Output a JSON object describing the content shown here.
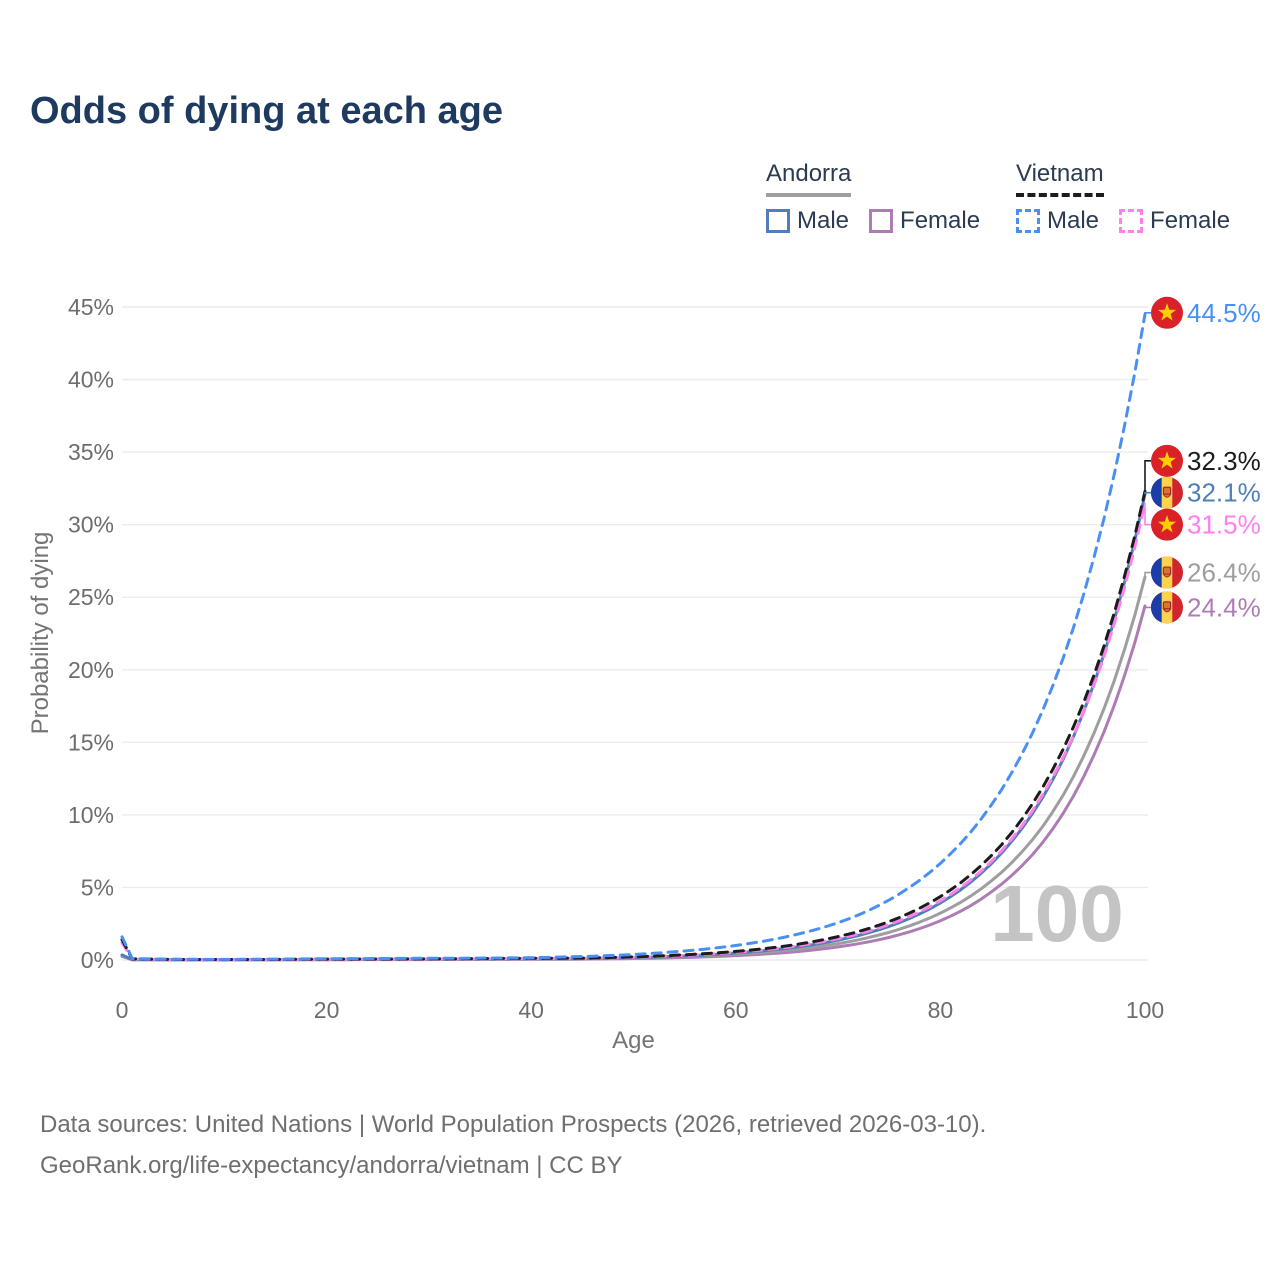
{
  "title": "Odds of dying at each age",
  "legend": {
    "groups": [
      {
        "country": "Andorra",
        "line_style": "solid",
        "underline_color": "#9e9e9e",
        "items": [
          {
            "label": "Male",
            "color": "#4e7fba"
          },
          {
            "label": "Female",
            "color": "#ae7cb4"
          }
        ]
      },
      {
        "country": "Vietnam",
        "line_style": "dashed",
        "underline_color": "#1c1c1c",
        "items": [
          {
            "label": "Male",
            "color": "#4a90f2"
          },
          {
            "label": "Female",
            "color": "#ff80ec"
          }
        ]
      }
    ]
  },
  "chart_data": {
    "type": "line",
    "title": "Odds of dying at each age",
    "xlabel": "Age",
    "ylabel": "Probability of dying",
    "xlim": [
      0,
      100
    ],
    "ylim": [
      0,
      45
    ],
    "x_ticks": [
      0,
      20,
      40,
      60,
      80,
      100
    ],
    "y_ticks": [
      0,
      5,
      10,
      15,
      20,
      25,
      30,
      35,
      40,
      45
    ],
    "y_tick_suffix": "%",
    "grid": "horizontal",
    "legend_position": "top-right",
    "watermark": "100",
    "x": [
      0,
      1,
      5,
      10,
      15,
      20,
      25,
      30,
      35,
      40,
      45,
      50,
      55,
      60,
      65,
      70,
      75,
      80,
      85,
      90,
      95,
      100
    ],
    "series": [
      {
        "name": "Andorra Female",
        "country": "Andorra",
        "sex": "Female",
        "color": "#ae7cb4",
        "dashed": false,
        "flag": "ad",
        "end_label": "24.4%",
        "end_value": 24.4,
        "label_pct": 24.3,
        "values": [
          0.25,
          0.02,
          0.01,
          0.01,
          0.02,
          0.02,
          0.03,
          0.03,
          0.04,
          0.05,
          0.06,
          0.1,
          0.17,
          0.3,
          0.52,
          0.9,
          1.56,
          2.7,
          4.7,
          8.1,
          14.1,
          24.4
        ]
      },
      {
        "name": "Andorra Both sexes",
        "country": "Andorra",
        "sex": "Both",
        "color": "#9e9e9e",
        "dashed": false,
        "flag": "ad",
        "end_label": "26.4%",
        "end_value": 26.4,
        "label_pct": 26.7,
        "values": [
          0.3,
          0.03,
          0.02,
          0.02,
          0.02,
          0.03,
          0.04,
          0.04,
          0.05,
          0.06,
          0.08,
          0.14,
          0.23,
          0.4,
          0.67,
          1.13,
          1.91,
          3.23,
          5.46,
          9.2,
          15.6,
          26.4
        ]
      },
      {
        "name": "Andorra Male",
        "country": "Andorra",
        "sex": "Male",
        "color": "#4e7fba",
        "dashed": false,
        "flag": "ad",
        "end_label": "32.1%",
        "end_value": 32.1,
        "label_pct": 32.2,
        "values": [
          0.35,
          0.03,
          0.02,
          0.02,
          0.03,
          0.05,
          0.06,
          0.06,
          0.07,
          0.08,
          0.1,
          0.17,
          0.28,
          0.48,
          0.81,
          1.37,
          2.32,
          3.93,
          6.65,
          11.2,
          19.0,
          32.1
        ]
      },
      {
        "name": "Vietnam Female",
        "country": "Vietnam",
        "sex": "Female",
        "color": "#ff80ec",
        "dashed": true,
        "flag": "vn",
        "end_label": "31.5%",
        "end_value": 31.5,
        "label_pct": 30.0,
        "values": [
          1.2,
          0.07,
          0.03,
          0.02,
          0.03,
          0.04,
          0.05,
          0.06,
          0.08,
          0.09,
          0.12,
          0.19,
          0.32,
          0.53,
          0.88,
          1.47,
          2.45,
          4.08,
          6.8,
          11.4,
          18.9,
          31.5
        ]
      },
      {
        "name": "Vietnam Both sexes",
        "country": "Vietnam",
        "sex": "Both",
        "color": "#1c1c1c",
        "dashed": true,
        "flag": "vn",
        "end_label": "32.3%",
        "end_value": 32.3,
        "label_pct": 34.4,
        "values": [
          1.4,
          0.08,
          0.04,
          0.03,
          0.04,
          0.06,
          0.07,
          0.08,
          0.1,
          0.12,
          0.13,
          0.22,
          0.36,
          0.59,
          0.98,
          1.61,
          2.65,
          4.37,
          7.2,
          11.9,
          19.6,
          32.3
        ]
      },
      {
        "name": "Vietnam Male",
        "country": "Vietnam",
        "sex": "Male",
        "color": "#4a90f2",
        "dashed": true,
        "flag": "vn",
        "end_label": "44.5%",
        "end_value": 44.5,
        "label_pct": 44.6,
        "values": [
          1.6,
          0.1,
          0.05,
          0.04,
          0.06,
          0.09,
          0.1,
          0.12,
          0.13,
          0.16,
          0.24,
          0.38,
          0.62,
          1.0,
          1.61,
          2.57,
          4.14,
          6.66,
          10.7,
          17.2,
          27.7,
          44.5
        ]
      }
    ]
  },
  "flags": {
    "vn": {
      "red": "#da2127",
      "star": "#ffcf00"
    },
    "ad": {
      "blue": "#1a3da8",
      "yellow": "#fcd34d",
      "red": "#d2242e",
      "crest": "#d97627",
      "crest_border": "#a32638"
    }
  },
  "footer": {
    "line1": "Data sources: United Nations | World Population Prospects (2026, retrieved 2026-03-10).",
    "line2": "GeoRank.org/life-expectancy/andorra/vietnam | CC BY"
  }
}
